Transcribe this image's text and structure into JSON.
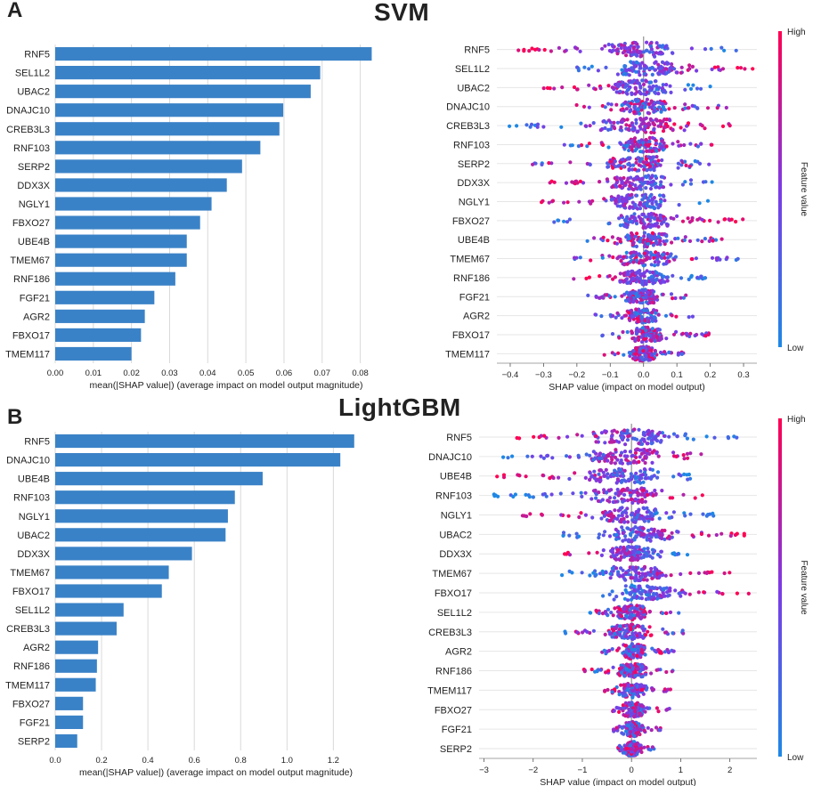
{
  "figure": {
    "panel_a_letter": "A",
    "panel_b_letter": "B",
    "panel_a_title": "SVM",
    "panel_b_title": "LightGBM"
  },
  "colors": {
    "bar": "#3a82c7",
    "low": "#1e88e5",
    "high": "#ff0052",
    "grid": "#d9d9d9",
    "zero_line": "#9a9a9a"
  },
  "colorbar": {
    "high_label": "High",
    "low_label": "Low",
    "title": "Feature value"
  },
  "chart_data": [
    {
      "id": "svm_bar",
      "type": "bar",
      "orientation": "horizontal",
      "categories": [
        "RNF5",
        "SEL1L2",
        "UBAC2",
        "DNAJC10",
        "CREB3L3",
        "RNF103",
        "SERP2",
        "DDX3X",
        "NGLY1",
        "FBXO27",
        "UBE4B",
        "TMEM67",
        "RNF186",
        "FGF21",
        "AGR2",
        "FBXO17",
        "TMEM117"
      ],
      "values": [
        0.083,
        0.0695,
        0.067,
        0.0598,
        0.0588,
        0.0538,
        0.049,
        0.045,
        0.041,
        0.038,
        0.0345,
        0.0345,
        0.0315,
        0.026,
        0.0235,
        0.0225,
        0.02
      ],
      "xlim": [
        0,
        0.085
      ],
      "xticks": [
        "0.00",
        "0.01",
        "0.02",
        "0.03",
        "0.04",
        "0.05",
        "0.06",
        "0.07",
        "0.08"
      ],
      "xtick_values": [
        0,
        0.01,
        0.02,
        0.03,
        0.04,
        0.05,
        0.06,
        0.07,
        0.08
      ],
      "xlabel": "mean(|SHAP value|) (average impact on model output magnitude)"
    },
    {
      "id": "svm_beeswarm",
      "type": "scatter",
      "subtype": "shap-beeswarm",
      "categories": [
        "RNF5",
        "SEL1L2",
        "UBAC2",
        "DNAJC10",
        "CREB3L3",
        "RNF103",
        "SERP2",
        "DDX3X",
        "NGLY1",
        "FBXO27",
        "UBE4B",
        "TMEM67",
        "RNF186",
        "FGF21",
        "AGR2",
        "FBXO17",
        "TMEM117"
      ],
      "spread": [
        [
          -0.38,
          0.29
        ],
        [
          -0.22,
          0.35
        ],
        [
          -0.3,
          0.22
        ],
        [
          -0.22,
          0.25
        ],
        [
          -0.41,
          0.27
        ],
        [
          -0.24,
          0.22
        ],
        [
          -0.35,
          0.2
        ],
        [
          -0.3,
          0.22
        ],
        [
          -0.31,
          0.2
        ],
        [
          -0.27,
          0.3
        ],
        [
          -0.18,
          0.25
        ],
        [
          -0.24,
          0.29
        ],
        [
          -0.22,
          0.19
        ],
        [
          -0.17,
          0.13
        ],
        [
          -0.15,
          0.15
        ],
        [
          -0.13,
          0.2
        ],
        [
          -0.12,
          0.12
        ]
      ],
      "high_side": [
        "left",
        "right",
        "left",
        "mixed",
        "right",
        "mixed",
        "mixed",
        "left",
        "left",
        "right",
        "mixed",
        "mixed",
        "left",
        "mixed",
        "mixed",
        "mixed",
        "mixed"
      ],
      "xlim": [
        -0.44,
        0.34
      ],
      "xticks": [
        "−0.4",
        "−0.3",
        "−0.2",
        "−0.1",
        "0.0",
        "0.1",
        "0.2",
        "0.3"
      ],
      "xtick_values": [
        -0.4,
        -0.3,
        -0.2,
        -0.1,
        0,
        0.1,
        0.2,
        0.3
      ],
      "xlabel": "SHAP value (impact on model output)"
    },
    {
      "id": "lgbm_bar",
      "type": "bar",
      "orientation": "horizontal",
      "categories": [
        "RNF5",
        "DNAJC10",
        "UBE4B",
        "RNF103",
        "NGLY1",
        "UBAC2",
        "DDX3X",
        "TMEM67",
        "FBXO17",
        "SEL1L2",
        "CREB3L3",
        "AGR2",
        "RNF186",
        "TMEM117",
        "FBXO27",
        "FGF21",
        "SERP2"
      ],
      "values": [
        1.29,
        1.23,
        0.895,
        0.775,
        0.745,
        0.735,
        0.59,
        0.49,
        0.46,
        0.295,
        0.265,
        0.185,
        0.18,
        0.175,
        0.12,
        0.12,
        0.095
      ],
      "xlim": [
        0,
        1.31
      ],
      "xticks": [
        "0.0",
        "0.2",
        "0.4",
        "0.6",
        "0.8",
        "1.0",
        "1.2"
      ],
      "xtick_values": [
        0,
        0.2,
        0.4,
        0.6,
        0.8,
        1.0,
        1.2
      ],
      "xlabel": "mean(|SHAP value|) (average impact on model output magnitude)"
    },
    {
      "id": "lgbm_beeswarm",
      "type": "scatter",
      "subtype": "shap-beeswarm",
      "categories": [
        "RNF5",
        "DNAJC10",
        "UBE4B",
        "RNF103",
        "NGLY1",
        "UBAC2",
        "DDX3X",
        "TMEM67",
        "FBXO17",
        "SEL1L2",
        "CREB3L3",
        "AGR2",
        "RNF186",
        "TMEM117",
        "FBXO27",
        "FGF21",
        "SERP2"
      ],
      "spread": [
        [
          -2.4,
          2.2
        ],
        [
          -2.7,
          1.8
        ],
        [
          -2.8,
          1.6
        ],
        [
          -2.8,
          2.0
        ],
        [
          -2.3,
          1.8
        ],
        [
          -1.4,
          2.4
        ],
        [
          -1.4,
          1.3
        ],
        [
          -1.5,
          2.0
        ],
        [
          -0.6,
          2.4
        ],
        [
          -0.9,
          1.0
        ],
        [
          -1.4,
          1.2
        ],
        [
          -0.6,
          0.9
        ],
        [
          -1.0,
          0.9
        ],
        [
          -0.6,
          0.8
        ],
        [
          -0.4,
          0.8
        ],
        [
          -0.4,
          0.6
        ],
        [
          -0.3,
          0.5
        ]
      ],
      "high_side": [
        "left",
        "right",
        "left",
        "right",
        "left",
        "right",
        "left",
        "right",
        "right",
        "mixed",
        "mixed",
        "mixed",
        "mixed",
        "mixed",
        "mixed",
        "mixed",
        "mixed"
      ],
      "xlim": [
        -3.1,
        2.55
      ],
      "xticks": [
        "−3",
        "−2",
        "−1",
        "0",
        "1",
        "2"
      ],
      "xtick_values": [
        -3,
        -2,
        -1,
        0,
        1,
        2
      ],
      "xlabel": "SHAP value (impact on model output)"
    }
  ]
}
